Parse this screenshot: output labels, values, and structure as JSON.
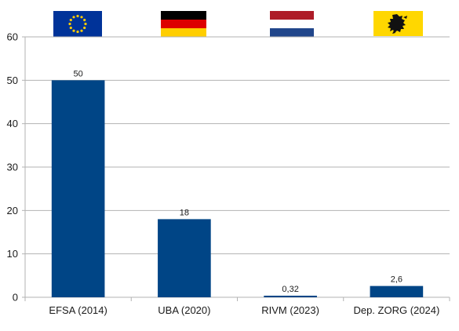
{
  "chart_data": {
    "type": "bar",
    "categories": [
      "EFSA (2014)",
      "UBA (2020)",
      "RIVM (2023)",
      "Dep. ZORG (2024)"
    ],
    "values": [
      50,
      18,
      0.32,
      2.6
    ],
    "data_labels": [
      "50",
      "18",
      "0,32",
      "2,6"
    ],
    "title": "",
    "xlabel": "",
    "ylabel": "",
    "ylim": [
      0,
      60
    ],
    "yticks": [
      "0",
      "10",
      "20",
      "30",
      "40",
      "50",
      "60"
    ],
    "grid": "horizontal",
    "legend": "none",
    "bar_color": "#004586",
    "grid_color": "#b3b3b3",
    "category_flags": [
      "eu-flag-icon",
      "germany-flag-icon",
      "netherlands-flag-icon",
      "flanders-flag-icon"
    ]
  }
}
